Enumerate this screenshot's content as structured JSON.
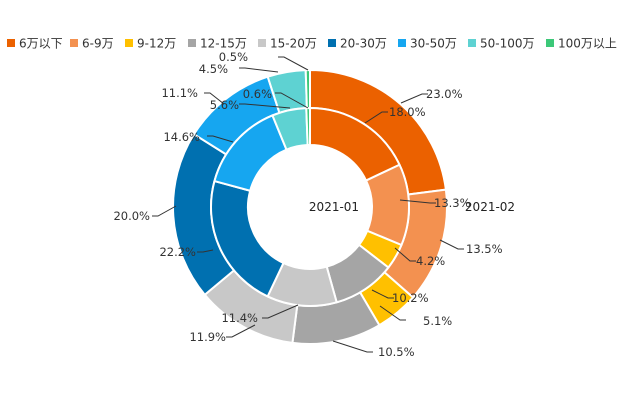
{
  "chart_data": {
    "type": "pie",
    "subtype": "nested-donut",
    "title": "",
    "categories": [
      "6万以下",
      "6-9万",
      "9-12万",
      "12-15万",
      "15-20万",
      "20-30万",
      "30-50万",
      "50-100万",
      "100万以上"
    ],
    "colors": [
      "#eb6100",
      "#f39150",
      "#ffc000",
      "#a5a5a5",
      "#c8c8c8",
      "#0070b0",
      "#16a6f0",
      "#5ed2d2",
      "#3cc878"
    ],
    "series": [
      {
        "name": "2021-01",
        "ring": "inner",
        "values": [
          18.0,
          13.3,
          4.2,
          10.2,
          11.4,
          22.2,
          14.6,
          5.6,
          0.6
        ],
        "labels": [
          "18.0%",
          "13.3%",
          "4.2%",
          "10.2%",
          "11.4%",
          "22.2%",
          "14.6%",
          "5.6%",
          "0.6%"
        ]
      },
      {
        "name": "2021-02",
        "ring": "outer",
        "values": [
          23.0,
          13.5,
          5.1,
          10.5,
          11.9,
          20.0,
          11.1,
          4.5,
          0.5
        ],
        "labels": [
          "23.0%",
          "13.5%",
          "5.1%",
          "10.5%",
          "11.9%",
          "20.0%",
          "11.1%",
          "4.5%",
          "0.5%"
        ]
      }
    ],
    "legend_position": "top"
  }
}
